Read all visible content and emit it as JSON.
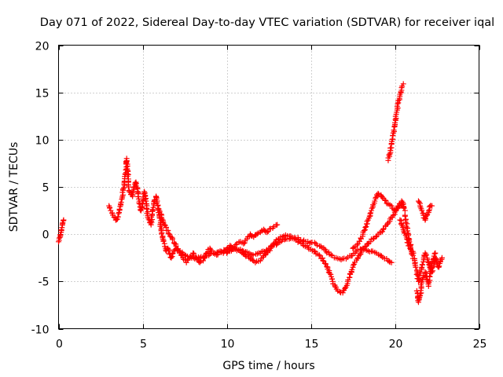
{
  "chart_data": {
    "type": "scatter",
    "title": "Day 071 of 2022, Sidereal Day-to-day VTEC variation (SDTVAR) for receiver iqal",
    "xlabel": "GPS time / hours",
    "ylabel": "SDTVAR / TECUs",
    "xlim": [
      0,
      25
    ],
    "ylim": [
      -10,
      20
    ],
    "xticks": [
      0,
      5,
      10,
      15,
      20,
      25
    ],
    "yticks": [
      -10,
      -5,
      0,
      5,
      10,
      15,
      20
    ],
    "xtick_labels": [
      "0",
      "5",
      "10",
      "15",
      "20",
      "25"
    ],
    "ytick_labels": [
      "-10",
      "-5",
      "0",
      "5",
      "10",
      "15",
      "20"
    ],
    "grid": true,
    "marker": "+",
    "color": "#ff0000",
    "series": [
      {
        "name": "SDTVAR",
        "segments": [
          {
            "x": [
              0.0,
              0.1,
              0.15,
              0.2,
              0.25,
              0.3
            ],
            "y": [
              -0.8,
              -0.3,
              0.2,
              0.7,
              1.2,
              1.5
            ]
          },
          {
            "x": [
              3.0,
              3.1,
              3.2,
              3.3,
              3.4,
              3.5,
              3.6,
              3.7,
              3.8,
              3.9,
              4.0,
              4.05,
              4.1,
              4.15,
              4.2,
              4.3,
              4.4,
              4.5,
              4.6,
              4.7,
              4.8,
              4.9,
              5.0,
              5.1,
              5.2,
              5.3,
              5.4,
              5.5,
              5.6,
              5.7,
              5.8,
              5.9,
              6.0,
              6.1,
              6.2,
              6.3,
              6.4,
              6.5,
              6.6,
              6.7,
              6.8,
              7.0,
              7.2,
              7.4,
              7.6,
              7.8,
              8.0,
              8.2,
              8.4,
              8.6,
              8.8,
              9.0,
              9.2,
              9.4,
              9.6,
              9.8,
              10.0,
              10.2,
              10.4,
              10.6,
              10.8,
              11.0,
              11.2,
              11.4,
              11.6,
              11.8,
              12.0,
              12.2,
              12.4,
              12.6,
              12.8,
              13.0
            ],
            "y": [
              3.0,
              2.5,
              2.2,
              1.8,
              1.5,
              1.6,
              2.3,
              3.1,
              4.0,
              5.3,
              6.8,
              8.0,
              7.2,
              5.5,
              4.5,
              4.2,
              4.0,
              5.0,
              5.5,
              4.8,
              3.5,
              2.5,
              3.5,
              4.5,
              3.5,
              2.0,
              1.5,
              1.0,
              2.5,
              3.5,
              4.0,
              3.0,
              2.0,
              0.5,
              -0.5,
              -1.0,
              -1.8,
              -1.5,
              -2.0,
              -2.5,
              -2.0,
              -1.5,
              -2.0,
              -2.5,
              -3.0,
              -2.5,
              -2.0,
              -2.5,
              -3.0,
              -2.8,
              -2.0,
              -1.5,
              -2.0,
              -2.2,
              -1.8,
              -2.0,
              -1.6,
              -1.2,
              -1.5,
              -1.0,
              -0.8,
              -1.0,
              -0.5,
              0.0,
              -0.3,
              0.0,
              0.2,
              0.5,
              0.2,
              0.6,
              0.8,
              1.0
            ]
          },
          {
            "x": [
              6.0,
              6.3,
              6.6,
              6.9,
              7.2,
              7.5,
              7.8,
              8.1,
              8.4,
              8.7,
              9.0,
              9.3,
              9.6,
              9.9,
              10.2,
              10.5,
              10.8,
              11.1,
              11.4,
              11.7,
              12.0,
              12.3,
              12.6,
              12.9,
              13.2,
              13.5,
              13.8,
              14.1,
              14.4,
              14.7,
              15.0,
              15.3,
              15.6,
              15.9,
              16.2,
              16.5,
              16.8,
              17.1,
              17.4,
              17.7,
              18.0,
              18.3,
              18.6,
              18.9,
              19.2,
              19.5,
              19.8
            ],
            "y": [
              2.5,
              1.0,
              0.0,
              -1.0,
              -1.8,
              -2.2,
              -2.4,
              -2.6,
              -2.5,
              -2.3,
              -2.1,
              -2.0,
              -1.9,
              -1.7,
              -1.5,
              -1.6,
              -1.8,
              -2.2,
              -2.6,
              -3.0,
              -2.8,
              -2.2,
              -1.5,
              -0.8,
              -0.3,
              -0.1,
              -0.2,
              -0.4,
              -0.6,
              -0.8,
              -0.9,
              -1.0,
              -1.3,
              -1.8,
              -2.2,
              -2.5,
              -2.7,
              -2.6,
              -2.3,
              -1.8,
              -1.6,
              -1.7,
              -1.8,
              -2.0,
              -2.3,
              -2.6,
              -3.0
            ]
          },
          {
            "x": [
              10.0,
              10.5,
              11.0,
              11.5,
              12.0,
              12.5,
              13.0,
              13.5,
              14.0,
              14.5,
              15.0,
              15.5,
              16.0,
              16.3,
              16.6,
              16.9,
              17.2,
              17.5,
              17.8,
              18.1,
              18.4,
              18.7,
              19.0,
              19.3,
              19.6,
              19.9,
              20.2,
              20.5
            ],
            "y": [
              -2.0,
              -1.5,
              -1.8,
              -2.2,
              -2.0,
              -1.5,
              -1.0,
              -0.5,
              -0.5,
              -1.0,
              -1.6,
              -2.2,
              -3.5,
              -5.0,
              -6.0,
              -6.2,
              -5.0,
              -3.5,
              -2.5,
              -1.5,
              -1.0,
              -0.5,
              0.0,
              0.5,
              1.2,
              2.0,
              2.8,
              3.2
            ]
          },
          {
            "x": [
              17.5,
              17.8,
              18.1,
              18.4,
              18.6,
              18.8,
              19.0,
              19.2,
              19.4,
              19.6,
              19.8,
              20.0,
              20.2,
              20.4,
              20.6
            ],
            "y": [
              -1.5,
              -1.0,
              0.0,
              1.5,
              2.5,
              3.5,
              4.3,
              4.0,
              3.6,
              3.2,
              3.0,
              2.5,
              3.0,
              3.5,
              2.5
            ]
          },
          {
            "x": [
              19.6,
              19.7,
              19.8,
              19.9,
              20.0,
              20.1,
              20.2,
              20.3,
              20.4,
              20.5
            ],
            "y": [
              7.8,
              8.5,
              9.6,
              10.7,
              11.8,
              12.9,
              13.9,
              14.8,
              15.5,
              15.9
            ]
          },
          {
            "x": [
              20.6,
              20.8,
              21.0,
              21.2,
              21.4,
              21.6,
              21.8,
              22.0,
              22.2,
              22.4,
              22.6,
              22.8
            ],
            "y": [
              2.0,
              0.0,
              -2.0,
              -3.0,
              -5.0,
              -3.5,
              -2.0,
              -3.0,
              -4.0,
              -2.5,
              -3.5,
              -2.5
            ]
          },
          {
            "x": [
              21.4,
              21.5,
              21.6,
              21.7,
              21.8,
              21.9,
              22.0,
              22.1,
              22.2
            ],
            "y": [
              3.5,
              3.0,
              2.5,
              2.0,
              1.5,
              2.0,
              2.3,
              3.0,
              3.0
            ]
          },
          {
            "x": [
              21.3,
              21.4,
              21.5,
              21.6,
              21.8,
              22.0,
              22.2,
              22.4
            ],
            "y": [
              -6.0,
              -7.2,
              -6.5,
              -5.0,
              -4.0,
              -5.5,
              -3.0,
              -2.0
            ]
          },
          {
            "x": [
              20.3,
              20.5,
              20.7,
              20.9,
              21.1
            ],
            "y": [
              1.5,
              0.5,
              -0.5,
              -1.5,
              -2.0
            ]
          }
        ]
      }
    ]
  }
}
